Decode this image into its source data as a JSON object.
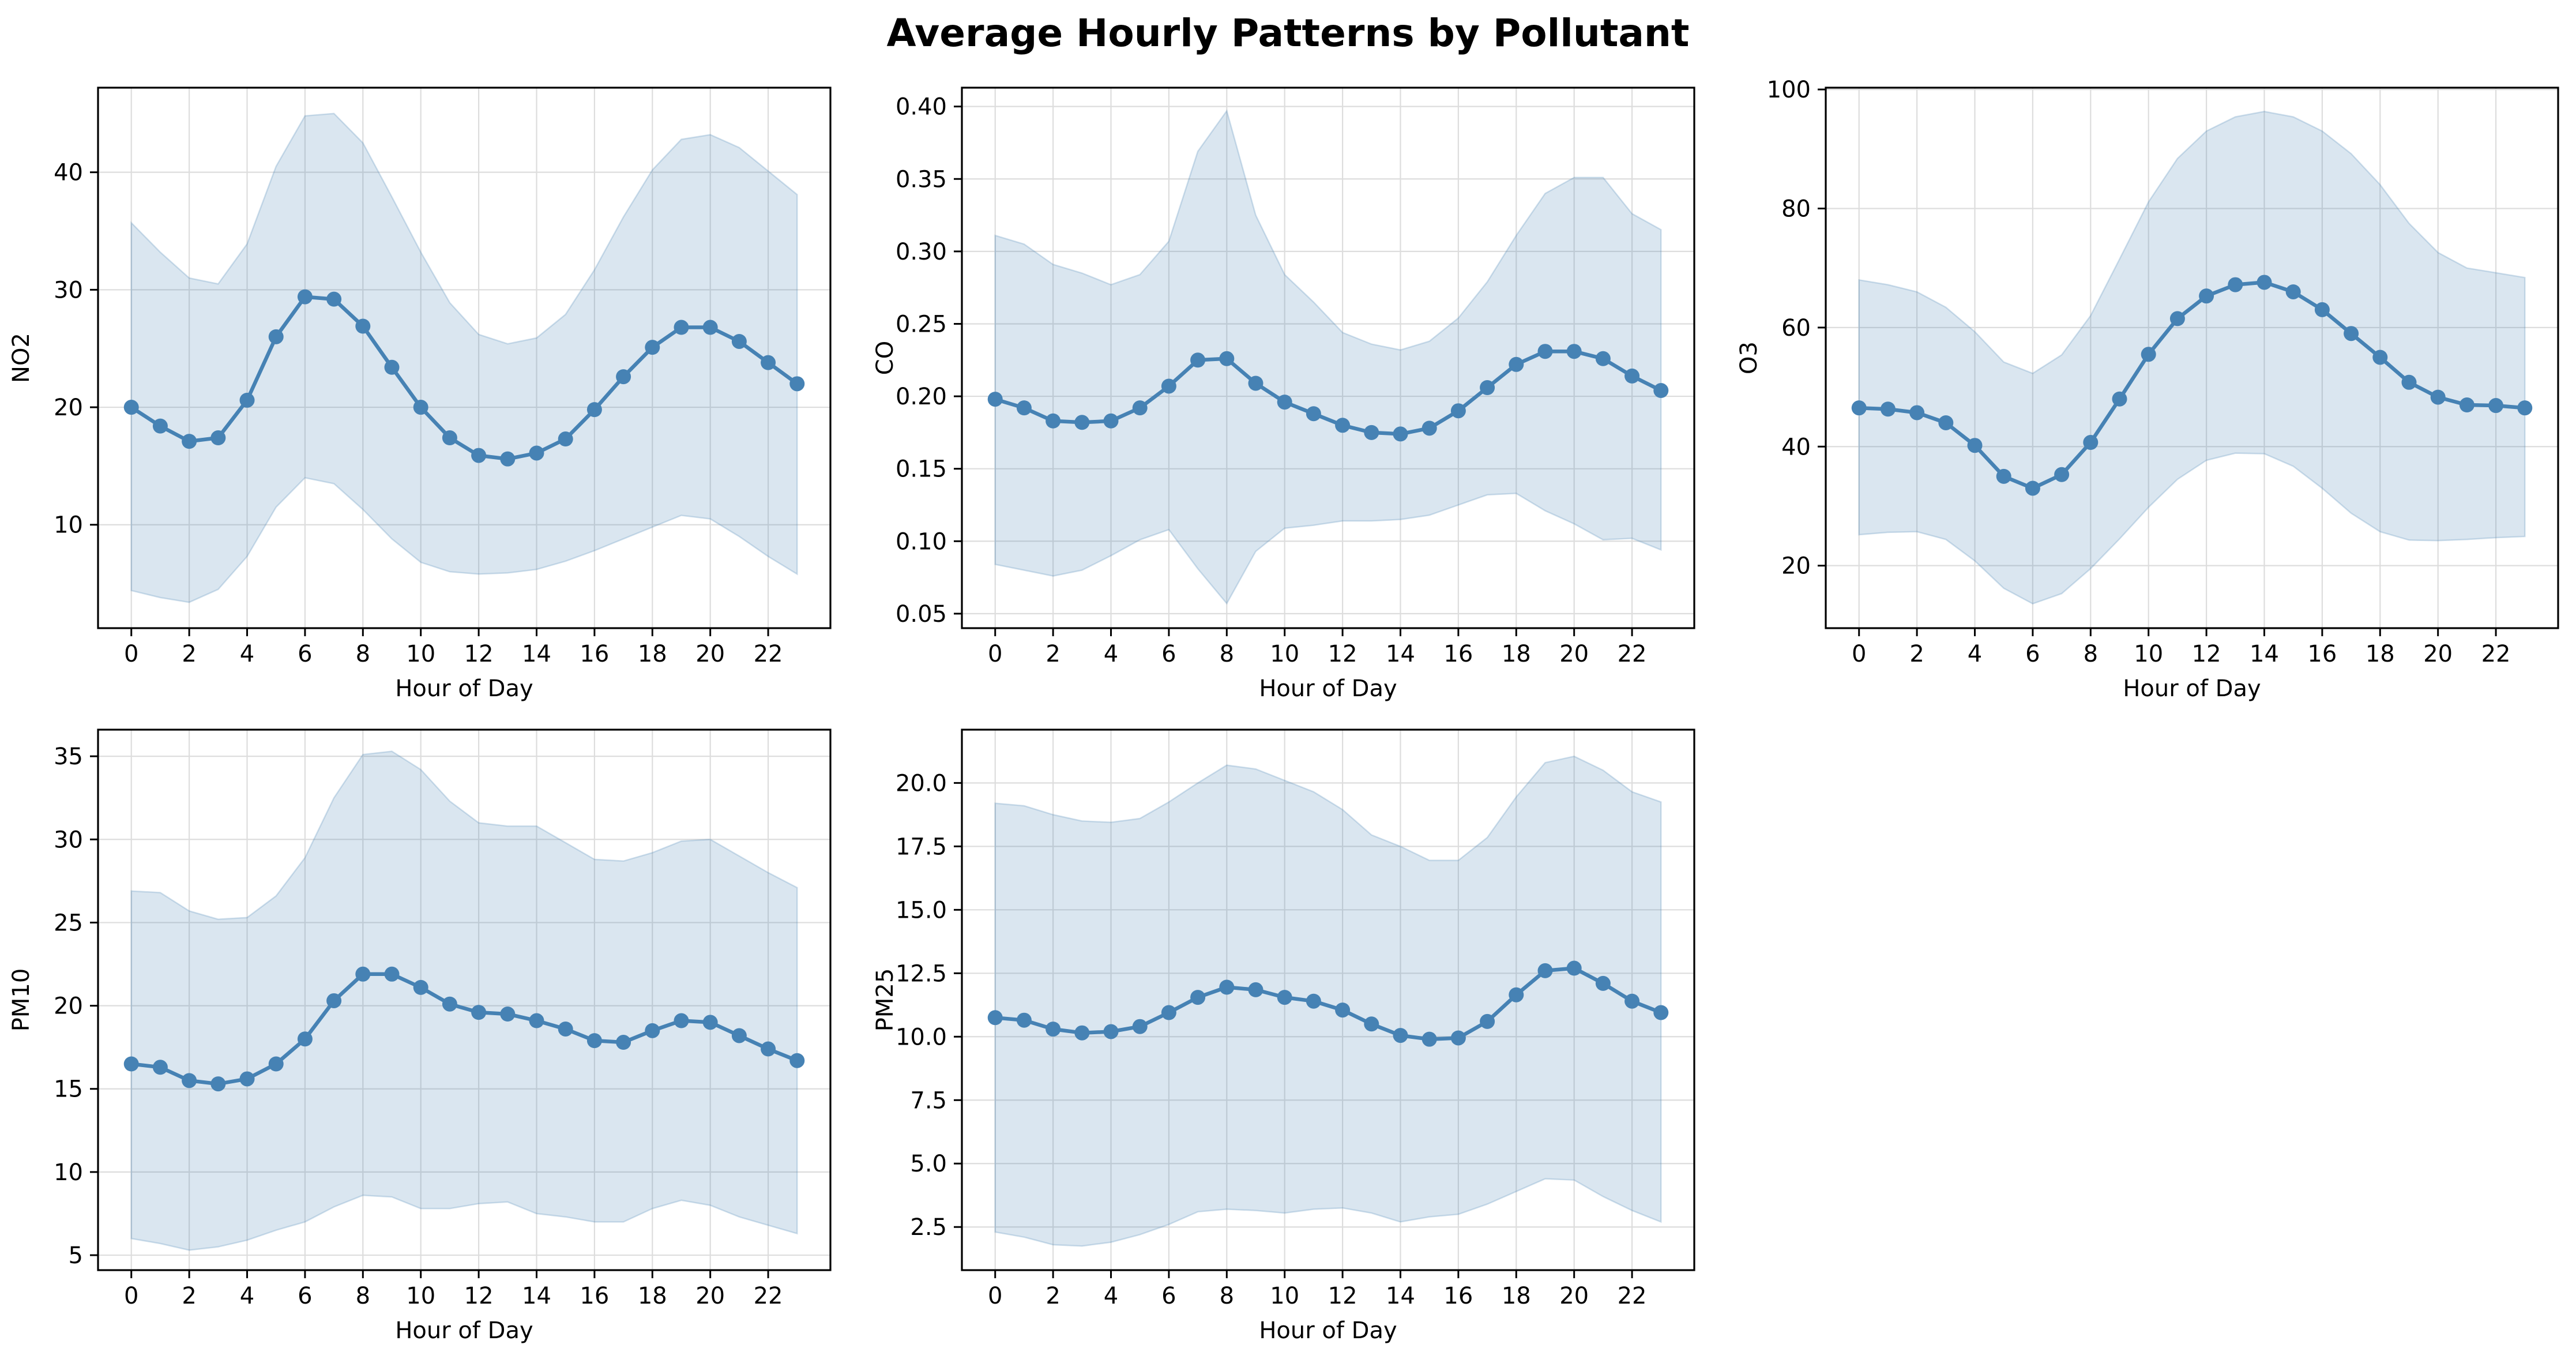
{
  "figure": {
    "title": "Average Hourly Patterns by Pollutant"
  },
  "colors": {
    "line": "#4682b4",
    "band": "#4682b4",
    "grid": "#dddddd",
    "axis": "#000000"
  },
  "chart_data": [
    {
      "type": "line",
      "title": "",
      "xlabel": "Hour of Day",
      "ylabel": "NO2",
      "grid": true,
      "xlim": [
        -1.15,
        24.15
      ],
      "ylim": [
        1.2,
        47.2
      ],
      "xticks": [
        0,
        2,
        4,
        6,
        8,
        10,
        12,
        14,
        16,
        18,
        20,
        22
      ],
      "xtick_labels": [
        "0",
        "2",
        "4",
        "6",
        "8",
        "10",
        "12",
        "14",
        "16",
        "18",
        "20",
        "22"
      ],
      "yticks": [
        10,
        20,
        30,
        40
      ],
      "ytick_labels": [
        "10",
        "20",
        "30",
        "40"
      ],
      "x": [
        0,
        1,
        2,
        3,
        4,
        5,
        6,
        7,
        8,
        9,
        10,
        11,
        12,
        13,
        14,
        15,
        16,
        17,
        18,
        19,
        20,
        21,
        22,
        23
      ],
      "series": [
        {
          "values": [
            20.0,
            18.4,
            17.1,
            17.4,
            20.6,
            26.0,
            29.4,
            29.2,
            26.9,
            23.4,
            20.0,
            17.4,
            15.9,
            15.6,
            16.1,
            17.3,
            19.8,
            22.6,
            25.1,
            26.8,
            26.8,
            25.6,
            23.8,
            22.0
          ],
          "lower": [
            4.4,
            3.8,
            3.4,
            4.5,
            7.3,
            11.5,
            14.0,
            13.5,
            11.3,
            8.8,
            6.8,
            6.0,
            5.8,
            5.9,
            6.2,
            6.9,
            7.8,
            8.8,
            9.8,
            10.8,
            10.5,
            9.0,
            7.3,
            5.8
          ],
          "upper": [
            35.7,
            33.2,
            31.0,
            30.5,
            33.9,
            40.5,
            44.8,
            45.0,
            42.5,
            37.9,
            33.2,
            28.9,
            26.2,
            25.4,
            25.9,
            27.9,
            31.7,
            36.2,
            40.2,
            42.8,
            43.2,
            42.1,
            40.1,
            38.1
          ]
        }
      ]
    },
    {
      "type": "line",
      "title": "",
      "xlabel": "Hour of Day",
      "ylabel": "CO",
      "grid": true,
      "xlim": [
        -1.15,
        24.15
      ],
      "ylim": [
        0.04,
        0.413
      ],
      "xticks": [
        0,
        2,
        4,
        6,
        8,
        10,
        12,
        14,
        16,
        18,
        20,
        22
      ],
      "xtick_labels": [
        "0",
        "2",
        "4",
        "6",
        "8",
        "10",
        "12",
        "14",
        "16",
        "18",
        "20",
        "22"
      ],
      "yticks": [
        0.05,
        0.1,
        0.15,
        0.2,
        0.25,
        0.3,
        0.35,
        0.4
      ],
      "ytick_labels": [
        "0.05",
        "0.10",
        "0.15",
        "0.20",
        "0.25",
        "0.30",
        "0.35",
        "0.40"
      ],
      "x": [
        0,
        1,
        2,
        3,
        4,
        5,
        6,
        7,
        8,
        9,
        10,
        11,
        12,
        13,
        14,
        15,
        16,
        17,
        18,
        19,
        20,
        21,
        22,
        23
      ],
      "series": [
        {
          "values": [
            0.198,
            0.192,
            0.183,
            0.182,
            0.183,
            0.192,
            0.207,
            0.225,
            0.226,
            0.209,
            0.196,
            0.188,
            0.18,
            0.175,
            0.174,
            0.178,
            0.19,
            0.206,
            0.222,
            0.231,
            0.231,
            0.226,
            0.214,
            0.204
          ],
          "lower": [
            0.084,
            0.08,
            0.076,
            0.08,
            0.09,
            0.101,
            0.108,
            0.081,
            0.057,
            0.093,
            0.109,
            0.111,
            0.114,
            0.114,
            0.115,
            0.118,
            0.125,
            0.132,
            0.133,
            0.121,
            0.112,
            0.101,
            0.102,
            0.094
          ],
          "upper": [
            0.311,
            0.305,
            0.291,
            0.285,
            0.277,
            0.284,
            0.307,
            0.369,
            0.397,
            0.325,
            0.284,
            0.265,
            0.244,
            0.236,
            0.232,
            0.238,
            0.254,
            0.279,
            0.311,
            0.34,
            0.351,
            0.351,
            0.326,
            0.315
          ]
        }
      ]
    },
    {
      "type": "line",
      "title": "",
      "xlabel": "Hour of Day",
      "ylabel": "O3",
      "grid": true,
      "xlim": [
        -1.15,
        24.15
      ],
      "ylim": [
        9.5,
        100.3
      ],
      "xticks": [
        0,
        2,
        4,
        6,
        8,
        10,
        12,
        14,
        16,
        18,
        20,
        22
      ],
      "xtick_labels": [
        "0",
        "2",
        "4",
        "6",
        "8",
        "10",
        "12",
        "14",
        "16",
        "18",
        "20",
        "22"
      ],
      "yticks": [
        20,
        40,
        60,
        80,
        100
      ],
      "ytick_labels": [
        "20",
        "40",
        "60",
        "80",
        "100"
      ],
      "x": [
        0,
        1,
        2,
        3,
        4,
        5,
        6,
        7,
        8,
        9,
        10,
        11,
        12,
        13,
        14,
        15,
        16,
        17,
        18,
        19,
        20,
        21,
        22,
        23
      ],
      "series": [
        {
          "values": [
            46.5,
            46.3,
            45.7,
            44.0,
            40.2,
            35.0,
            33.0,
            35.3,
            40.7,
            48.0,
            55.5,
            61.5,
            65.3,
            67.2,
            67.6,
            66.0,
            63.0,
            59.0,
            55.0,
            50.8,
            48.3,
            47.0,
            46.9,
            46.5
          ],
          "lower": [
            25.2,
            25.6,
            25.7,
            24.4,
            20.8,
            16.2,
            13.6,
            15.3,
            19.5,
            24.5,
            29.8,
            34.5,
            37.7,
            38.9,
            38.8,
            36.7,
            33.0,
            28.8,
            25.7,
            24.3,
            24.2,
            24.4,
            24.7,
            24.9
          ],
          "upper": [
            68.0,
            67.2,
            66.0,
            63.4,
            59.3,
            54.2,
            52.3,
            55.4,
            62.0,
            71.5,
            81.1,
            88.4,
            93.0,
            95.4,
            96.3,
            95.4,
            93.0,
            89.2,
            84.0,
            77.5,
            72.6,
            70.0,
            69.2,
            68.4
          ]
        }
      ]
    },
    {
      "type": "line",
      "title": "",
      "xlabel": "Hour of Day",
      "ylabel": "PM10",
      "grid": true,
      "xlim": [
        -1.15,
        24.15
      ],
      "ylim": [
        4.1,
        36.6
      ],
      "xticks": [
        0,
        2,
        4,
        6,
        8,
        10,
        12,
        14,
        16,
        18,
        20,
        22
      ],
      "xtick_labels": [
        "0",
        "2",
        "4",
        "6",
        "8",
        "10",
        "12",
        "14",
        "16",
        "18",
        "20",
        "22"
      ],
      "yticks": [
        5,
        10,
        15,
        20,
        25,
        30,
        35
      ],
      "ytick_labels": [
        "5",
        "10",
        "15",
        "20",
        "25",
        "30",
        "35"
      ],
      "x": [
        0,
        1,
        2,
        3,
        4,
        5,
        6,
        7,
        8,
        9,
        10,
        11,
        12,
        13,
        14,
        15,
        16,
        17,
        18,
        19,
        20,
        21,
        22,
        23
      ],
      "series": [
        {
          "values": [
            16.5,
            16.3,
            15.5,
            15.3,
            15.6,
            16.5,
            18.0,
            20.3,
            21.9,
            21.9,
            21.1,
            20.1,
            19.6,
            19.5,
            19.1,
            18.6,
            17.9,
            17.8,
            18.5,
            19.1,
            19.0,
            18.2,
            17.4,
            16.7
          ],
          "lower": [
            6.0,
            5.7,
            5.3,
            5.5,
            5.9,
            6.5,
            7.0,
            7.9,
            8.6,
            8.5,
            7.8,
            7.8,
            8.1,
            8.2,
            7.5,
            7.3,
            7.0,
            7.0,
            7.8,
            8.3,
            8.0,
            7.3,
            6.8,
            6.3
          ],
          "upper": [
            26.9,
            26.8,
            25.7,
            25.2,
            25.3,
            26.6,
            28.9,
            32.5,
            35.1,
            35.3,
            34.2,
            32.3,
            31.0,
            30.8,
            30.8,
            29.8,
            28.8,
            28.7,
            29.2,
            29.9,
            30.0,
            29.0,
            28.0,
            27.1
          ]
        }
      ]
    },
    {
      "type": "line",
      "title": "",
      "xlabel": "Hour of Day",
      "ylabel": "PM25",
      "grid": true,
      "xlim": [
        -1.15,
        24.15
      ],
      "ylim": [
        0.8,
        22.1
      ],
      "xticks": [
        0,
        2,
        4,
        6,
        8,
        10,
        12,
        14,
        16,
        18,
        20,
        22
      ],
      "xtick_labels": [
        "0",
        "2",
        "4",
        "6",
        "8",
        "10",
        "12",
        "14",
        "16",
        "18",
        "20",
        "22"
      ],
      "yticks": [
        2.5,
        5.0,
        7.5,
        10.0,
        12.5,
        15.0,
        17.5,
        20.0
      ],
      "ytick_labels": [
        "2.5",
        "5.0",
        "7.5",
        "10.0",
        "12.5",
        "15.0",
        "17.5",
        "20.0"
      ],
      "x": [
        0,
        1,
        2,
        3,
        4,
        5,
        6,
        7,
        8,
        9,
        10,
        11,
        12,
        13,
        14,
        15,
        16,
        17,
        18,
        19,
        20,
        21,
        22,
        23
      ],
      "series": [
        {
          "values": [
            10.75,
            10.65,
            10.3,
            10.15,
            10.2,
            10.4,
            10.95,
            11.55,
            11.95,
            11.85,
            11.55,
            11.4,
            11.05,
            10.5,
            10.05,
            9.9,
            9.95,
            10.6,
            11.65,
            12.6,
            12.7,
            12.1,
            11.4,
            10.95
          ],
          "lower": [
            2.3,
            2.1,
            1.8,
            1.75,
            1.9,
            2.2,
            2.6,
            3.1,
            3.2,
            3.15,
            3.05,
            3.2,
            3.25,
            3.05,
            2.7,
            2.9,
            3.0,
            3.4,
            3.9,
            4.4,
            4.35,
            3.7,
            3.15,
            2.7
          ],
          "upper": [
            19.2,
            19.1,
            18.75,
            18.5,
            18.45,
            18.6,
            19.25,
            20.0,
            20.7,
            20.55,
            20.1,
            19.65,
            18.95,
            17.95,
            17.5,
            16.95,
            16.95,
            17.85,
            19.45,
            20.8,
            21.05,
            20.5,
            19.65,
            19.25
          ]
        }
      ]
    }
  ]
}
